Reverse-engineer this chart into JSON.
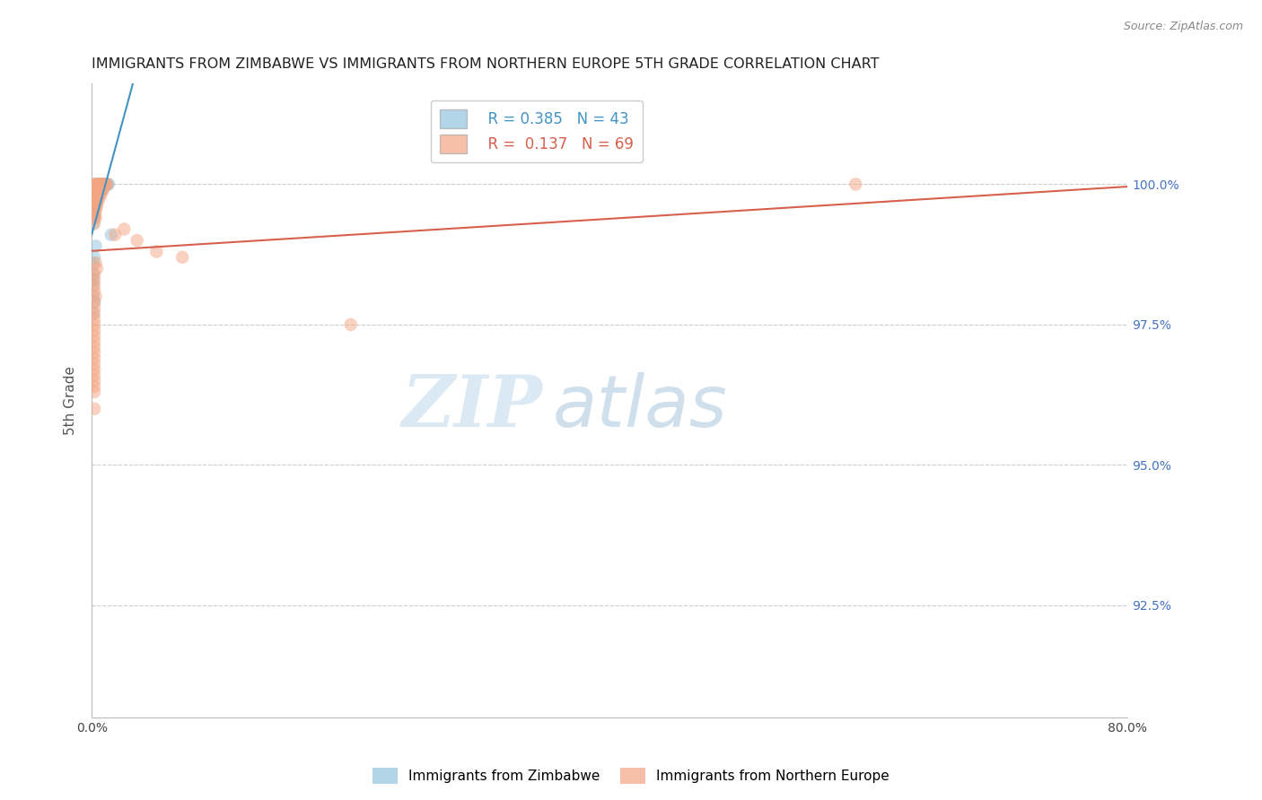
{
  "title": "IMMIGRANTS FROM ZIMBABWE VS IMMIGRANTS FROM NORTHERN EUROPE 5TH GRADE CORRELATION CHART",
  "source": "Source: ZipAtlas.com",
  "ylabel": "5th Grade",
  "legend_blue_r": "R = 0.385",
  "legend_blue_n": "N = 43",
  "legend_pink_r": "R =  0.137",
  "legend_pink_n": "N = 69",
  "legend_label_blue": "Immigrants from Zimbabwe",
  "legend_label_pink": "Immigrants from Northern Europe",
  "blue_color": "#92c5de",
  "pink_color": "#f4a582",
  "trend_blue_color": "#4393c3",
  "trend_pink_color": "#d6604d",
  "xlim": [
    0.0,
    0.8
  ],
  "ylim": [
    0.905,
    1.018
  ],
  "yticks": [
    1.0,
    0.975,
    0.95,
    0.925
  ],
  "ytick_labels": [
    "100.0%",
    "97.5%",
    "95.0%",
    "92.5%"
  ],
  "xtick_positions": [
    0.0,
    0.1,
    0.2,
    0.3,
    0.4,
    0.5,
    0.6,
    0.7,
    0.8
  ],
  "blue_x": [
    0.003,
    0.005,
    0.006,
    0.007,
    0.008,
    0.009,
    0.01,
    0.011,
    0.012,
    0.013,
    0.002,
    0.003,
    0.004,
    0.005,
    0.006,
    0.007,
    0.008,
    0.002,
    0.003,
    0.004,
    0.005,
    0.001,
    0.002,
    0.003,
    0.004,
    0.001,
    0.002,
    0.003,
    0.001,
    0.002,
    0.001,
    0.002,
    0.001,
    0.015,
    0.003,
    0.002,
    0.001,
    0.001,
    0.001,
    0.001,
    0.001,
    0.002,
    0.001
  ],
  "blue_y": [
    1.0,
    1.0,
    1.0,
    1.0,
    1.0,
    1.0,
    1.0,
    1.0,
    1.0,
    1.0,
    0.999,
    0.999,
    0.999,
    0.999,
    0.999,
    0.999,
    0.999,
    0.998,
    0.998,
    0.998,
    0.998,
    0.997,
    0.997,
    0.997,
    0.997,
    0.996,
    0.996,
    0.996,
    0.995,
    0.995,
    0.994,
    0.994,
    0.993,
    0.991,
    0.989,
    0.987,
    0.986,
    0.984,
    0.983,
    0.982,
    0.98,
    0.979,
    0.977
  ],
  "pink_x": [
    0.002,
    0.003,
    0.004,
    0.005,
    0.006,
    0.007,
    0.008,
    0.009,
    0.01,
    0.011,
    0.012,
    0.002,
    0.003,
    0.004,
    0.005,
    0.006,
    0.007,
    0.008,
    0.009,
    0.002,
    0.003,
    0.004,
    0.005,
    0.006,
    0.007,
    0.002,
    0.003,
    0.004,
    0.005,
    0.002,
    0.003,
    0.004,
    0.002,
    0.003,
    0.002,
    0.003,
    0.002,
    0.025,
    0.018,
    0.59,
    0.035,
    0.05,
    0.07,
    0.2,
    0.003,
    0.004,
    0.002,
    0.002,
    0.002,
    0.002,
    0.003,
    0.002,
    0.002,
    0.002,
    0.002,
    0.002,
    0.002,
    0.002,
    0.002,
    0.002,
    0.002,
    0.002,
    0.002,
    0.002,
    0.002,
    0.002,
    0.002,
    0.002,
    0.002
  ],
  "pink_y": [
    1.0,
    1.0,
    1.0,
    1.0,
    1.0,
    1.0,
    1.0,
    1.0,
    1.0,
    1.0,
    1.0,
    0.999,
    0.999,
    0.999,
    0.999,
    0.999,
    0.999,
    0.999,
    0.999,
    0.998,
    0.998,
    0.998,
    0.998,
    0.998,
    0.998,
    0.997,
    0.997,
    0.997,
    0.997,
    0.996,
    0.996,
    0.996,
    0.995,
    0.995,
    0.994,
    0.994,
    0.993,
    0.992,
    0.991,
    1.0,
    0.99,
    0.988,
    0.987,
    0.975,
    0.986,
    0.985,
    0.984,
    0.983,
    0.982,
    0.981,
    0.98,
    0.979,
    0.978,
    0.977,
    0.976,
    0.975,
    0.974,
    0.973,
    0.972,
    0.971,
    0.97,
    0.969,
    0.968,
    0.967,
    0.966,
    0.965,
    0.964,
    0.963,
    0.96
  ]
}
